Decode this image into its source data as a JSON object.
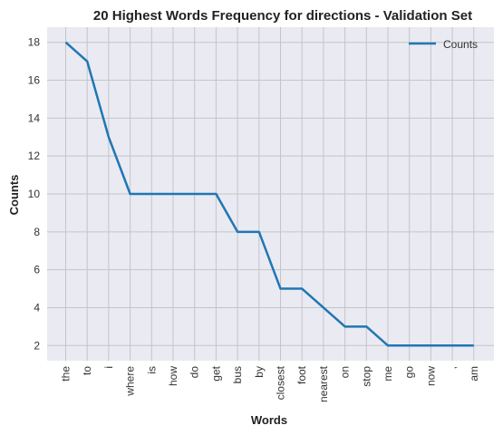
{
  "chart_data": {
    "type": "line",
    "title": "20 Highest Words Frequency for directions - Validation Set",
    "xlabel": "Words",
    "ylabel": "Counts",
    "categories": [
      "the",
      "to",
      "i",
      "where",
      "is",
      "how",
      "do",
      "get",
      "bus",
      "by",
      "closest",
      "foot",
      "nearest",
      "on",
      "stop",
      "me",
      "go",
      "now",
      ",",
      "am"
    ],
    "series": [
      {
        "name": "Counts",
        "values": [
          18,
          17,
          13,
          10,
          10,
          10,
          10,
          10,
          8,
          8,
          5,
          5,
          4,
          3,
          3,
          2,
          2,
          2,
          2,
          2
        ]
      }
    ],
    "yticks": [
      2,
      4,
      6,
      8,
      10,
      12,
      14,
      16,
      18
    ],
    "ylim": [
      1.2,
      18.8
    ],
    "grid": true,
    "legend_position": "top-right",
    "line_color": "#1f77b4",
    "plot_background": "#eaeaf2",
    "grid_color": "#c4c4c8"
  }
}
